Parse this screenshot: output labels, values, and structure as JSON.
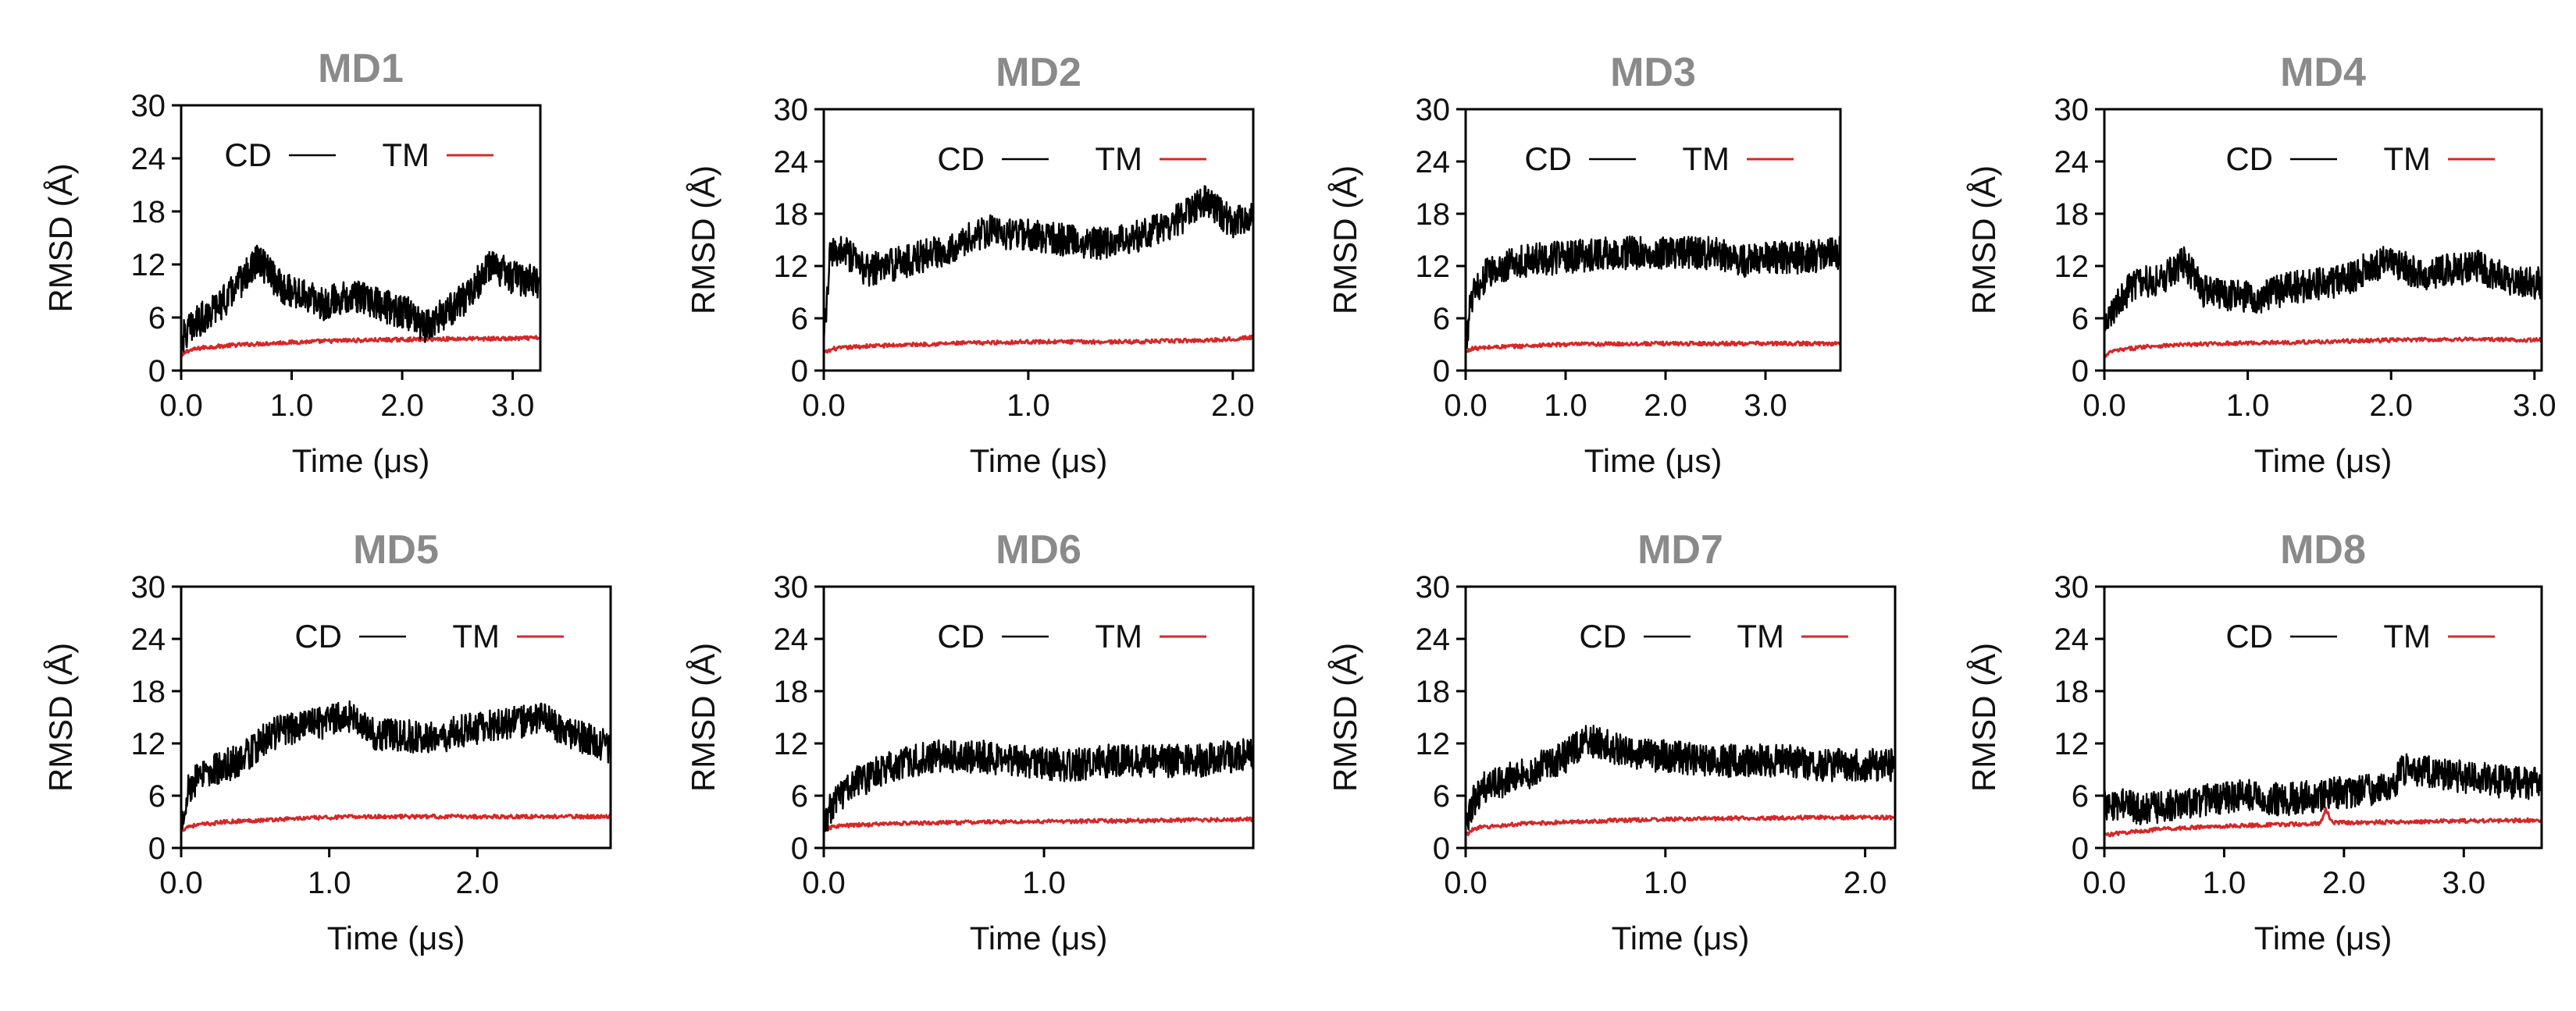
{
  "colors": {
    "cd": "#000000",
    "tm": "#d62728",
    "title": "#8a8a8a"
  },
  "chart_data": [
    {
      "type": "line",
      "title": "MD1",
      "xlabel": "Time (μs)",
      "ylabel": "RMSD (Å)",
      "xlim": [
        0,
        3.25
      ],
      "ylim": [
        0,
        30
      ],
      "xticks": [
        0,
        1,
        2,
        3
      ],
      "xtick_labels": [
        "0.0",
        "1.0",
        "2.0",
        "3.0"
      ],
      "yticks": [
        0,
        6,
        12,
        18,
        24,
        30
      ],
      "ytick_labels": [
        "0",
        "6",
        "12",
        "18",
        "24",
        "30"
      ],
      "legend": [
        "CD",
        "TM"
      ],
      "legend_position": "top-right",
      "series": [
        {
          "name": "CD",
          "color": "#000000",
          "x": [
            0,
            0.1,
            0.2,
            0.4,
            0.6,
            0.7,
            0.9,
            1.1,
            1.3,
            1.5,
            1.7,
            1.9,
            2.05,
            2.2,
            2.4,
            2.6,
            2.8,
            3.0,
            3.25
          ],
          "y": [
            3.5,
            5,
            6,
            8,
            11,
            12.5,
            9.5,
            8.5,
            7.5,
            8.5,
            8,
            7,
            6.5,
            5,
            6.5,
            8.5,
            12,
            10.5,
            10
          ]
        },
        {
          "name": "TM",
          "color": "#d62728",
          "x": [
            0,
            0.05,
            0.2,
            0.5,
            1.0,
            1.5,
            2.0,
            2.5,
            3.0,
            3.25
          ],
          "y": [
            1.5,
            2.2,
            2.6,
            2.9,
            3.2,
            3.4,
            3.5,
            3.6,
            3.6,
            3.7
          ]
        }
      ]
    },
    {
      "type": "line",
      "title": "MD2",
      "xlabel": "Time (μs)",
      "ylabel": "RMSD (Å)",
      "xlim": [
        0,
        2.1
      ],
      "ylim": [
        0,
        30
      ],
      "xticks": [
        0,
        1,
        2
      ],
      "xtick_labels": [
        "0.0",
        "1.0",
        "2.0"
      ],
      "yticks": [
        0,
        6,
        12,
        18,
        24,
        30
      ],
      "ytick_labels": [
        "0",
        "6",
        "12",
        "18",
        "24",
        "30"
      ],
      "legend": [
        "CD",
        "TM"
      ],
      "legend_position": "top-right",
      "series": [
        {
          "name": "CD",
          "color": "#000000",
          "x": [
            0,
            0.03,
            0.08,
            0.2,
            0.4,
            0.6,
            0.8,
            1.0,
            1.2,
            1.4,
            1.6,
            1.75,
            1.85,
            2.0,
            2.1
          ],
          "y": [
            3,
            13,
            14,
            11.5,
            12.5,
            14,
            16,
            15.5,
            15,
            14.5,
            16,
            17.5,
            19.5,
            17,
            18
          ]
        },
        {
          "name": "TM",
          "color": "#d62728",
          "x": [
            0,
            0.05,
            0.2,
            0.6,
            1.0,
            1.5,
            1.9,
            2.1
          ],
          "y": [
            2,
            2.5,
            2.8,
            3.1,
            3.3,
            3.3,
            3.5,
            3.8
          ]
        }
      ]
    },
    {
      "type": "line",
      "title": "MD3",
      "xlabel": "Time (μs)",
      "ylabel": "RMSD (Å)",
      "xlim": [
        0,
        3.75
      ],
      "ylim": [
        0,
        30
      ],
      "xticks": [
        0,
        1,
        2,
        3
      ],
      "xtick_labels": [
        "0.0",
        "1.0",
        "2.0",
        "3.0"
      ],
      "yticks": [
        0,
        6,
        12,
        18,
        24,
        30
      ],
      "ytick_labels": [
        "0",
        "6",
        "12",
        "18",
        "24",
        "30"
      ],
      "legend": [
        "CD",
        "TM"
      ],
      "legend_position": "top-right",
      "series": [
        {
          "name": "CD",
          "color": "#000000",
          "x": [
            0,
            0.05,
            0.2,
            0.5,
            1.0,
            1.5,
            2.0,
            2.5,
            2.8,
            3.1,
            3.4,
            3.75
          ],
          "y": [
            2,
            8,
            11,
            12.5,
            13,
            13.5,
            13.5,
            13.5,
            12.5,
            13,
            13,
            13.5
          ]
        },
        {
          "name": "TM",
          "color": "#d62728",
          "x": [
            0,
            0.05,
            0.3,
            1.0,
            2.0,
            3.0,
            3.75
          ],
          "y": [
            2,
            2.5,
            2.7,
            3,
            3.1,
            3.1,
            3.1
          ]
        }
      ]
    },
    {
      "type": "line",
      "title": "MD4",
      "xlabel": "Time (μs)",
      "ylabel": "RMSD (Å)",
      "xlim": [
        0,
        3.05
      ],
      "ylim": [
        0,
        30
      ],
      "xticks": [
        0,
        1,
        2,
        3
      ],
      "xtick_labels": [
        "0.0",
        "1.0",
        "2.0",
        "3.0"
      ],
      "yticks": [
        0,
        6,
        12,
        18,
        24,
        30
      ],
      "ytick_labels": [
        "0",
        "6",
        "12",
        "18",
        "24",
        "30"
      ],
      "legend": [
        "CD",
        "TM"
      ],
      "legend_position": "top-right",
      "series": [
        {
          "name": "CD",
          "color": "#000000",
          "x": [
            0,
            0.05,
            0.2,
            0.4,
            0.55,
            0.7,
            0.9,
            1.1,
            1.3,
            1.5,
            1.7,
            1.85,
            2.0,
            2.2,
            2.4,
            2.6,
            2.8,
            3.05
          ],
          "y": [
            4,
            7,
            10,
            10.5,
            12.5,
            9,
            8.5,
            8.5,
            9.5,
            10,
            10.5,
            12,
            12.5,
            11,
            11.5,
            12,
            10.5,
            10
          ]
        },
        {
          "name": "TM",
          "color": "#d62728",
          "x": [
            0,
            0.05,
            0.3,
            0.8,
            1.5,
            2.0,
            2.5,
            3.05
          ],
          "y": [
            1.5,
            2.2,
            2.8,
            3.1,
            3.3,
            3.5,
            3.6,
            3.5
          ]
        }
      ]
    },
    {
      "type": "line",
      "title": "MD5",
      "xlabel": "Time (μs)",
      "ylabel": "RMSD (Å)",
      "xlim": [
        0,
        2.9
      ],
      "ylim": [
        0,
        30
      ],
      "xticks": [
        0,
        1,
        2
      ],
      "xtick_labels": [
        "0.0",
        "1.0",
        "2.0"
      ],
      "yticks": [
        0,
        6,
        12,
        18,
        24,
        30
      ],
      "ytick_labels": [
        "0",
        "6",
        "12",
        "18",
        "24",
        "30"
      ],
      "legend": [
        "CD",
        "TM"
      ],
      "legend_position": "top-right",
      "series": [
        {
          "name": "CD",
          "color": "#000000",
          "x": [
            0,
            0.05,
            0.2,
            0.4,
            0.6,
            0.8,
            1.0,
            1.1,
            1.3,
            1.5,
            1.7,
            1.9,
            2.1,
            2.3,
            2.45,
            2.6,
            2.75,
            2.9
          ],
          "y": [
            3,
            7,
            9,
            10,
            13,
            14,
            14.5,
            15.5,
            13,
            13,
            12.5,
            13.5,
            14,
            14.5,
            15,
            13,
            12.5,
            11.5
          ]
        },
        {
          "name": "TM",
          "color": "#d62728",
          "x": [
            0,
            0.05,
            0.3,
            0.8,
            1.2,
            1.8,
            2.4,
            2.9
          ],
          "y": [
            2,
            2.5,
            3,
            3.4,
            3.6,
            3.6,
            3.6,
            3.6
          ]
        }
      ]
    },
    {
      "type": "line",
      "title": "MD6",
      "xlabel": "Time (μs)",
      "ylabel": "RMSD (Å)",
      "xlim": [
        0,
        1.95
      ],
      "ylim": [
        0,
        30
      ],
      "xticks": [
        0,
        1
      ],
      "xtick_labels": [
        "0.0",
        "1.0"
      ],
      "yticks": [
        0,
        6,
        12,
        18,
        24,
        30
      ],
      "ytick_labels": [
        "0",
        "6",
        "12",
        "18",
        "24",
        "30"
      ],
      "legend": [
        "CD",
        "TM"
      ],
      "legend_position": "top-right",
      "series": [
        {
          "name": "CD",
          "color": "#000000",
          "x": [
            0,
            0.05,
            0.15,
            0.3,
            0.5,
            0.7,
            0.9,
            1.1,
            1.3,
            1.5,
            1.7,
            1.85,
            1.95
          ],
          "y": [
            3,
            5.5,
            7.5,
            9.5,
            10.5,
            10.5,
            10,
            9.5,
            10,
            10,
            10,
            10.5,
            11
          ]
        },
        {
          "name": "TM",
          "color": "#d62728",
          "x": [
            0,
            0.05,
            0.3,
            0.8,
            1.3,
            1.95
          ],
          "y": [
            2,
            2.5,
            2.8,
            3,
            3.1,
            3.3
          ]
        }
      ]
    },
    {
      "type": "line",
      "title": "MD7",
      "xlabel": "Time (μs)",
      "ylabel": "RMSD (Å)",
      "xlim": [
        0,
        2.15
      ],
      "ylim": [
        0,
        30
      ],
      "xticks": [
        0,
        1,
        2
      ],
      "xtick_labels": [
        "0.0",
        "1.0",
        "2.0"
      ],
      "yticks": [
        0,
        6,
        12,
        18,
        24,
        30
      ],
      "ytick_labels": [
        "0",
        "6",
        "12",
        "18",
        "24",
        "30"
      ],
      "legend": [
        "CD",
        "TM"
      ],
      "legend_position": "top-right",
      "series": [
        {
          "name": "CD",
          "color": "#000000",
          "x": [
            0,
            0.03,
            0.1,
            0.3,
            0.5,
            0.6,
            0.8,
            1.0,
            1.2,
            1.4,
            1.6,
            1.8,
            2.0,
            2.15
          ],
          "y": [
            1.5,
            5,
            7,
            8.5,
            10.5,
            12.5,
            11,
            10.5,
            10,
            10,
            10,
            9.5,
            9.5,
            9.5
          ]
        },
        {
          "name": "TM",
          "color": "#d62728",
          "x": [
            0,
            0.05,
            0.3,
            0.8,
            1.3,
            1.8,
            2.15
          ],
          "y": [
            1.5,
            2.3,
            2.8,
            3.2,
            3.4,
            3.5,
            3.5
          ]
        }
      ]
    },
    {
      "type": "line",
      "title": "MD8",
      "xlabel": "Time (μs)",
      "ylabel": "RMSD (Å)",
      "xlim": [
        0,
        3.65
      ],
      "ylim": [
        0,
        30
      ],
      "xticks": [
        0,
        1,
        2,
        3
      ],
      "xtick_labels": [
        "0.0",
        "1.0",
        "2.0",
        "3.0"
      ],
      "yticks": [
        0,
        6,
        12,
        18,
        24,
        30
      ],
      "ytick_labels": [
        "0",
        "6",
        "12",
        "18",
        "24",
        "30"
      ],
      "legend": [
        "CD",
        "TM"
      ],
      "legend_position": "top-right",
      "series": [
        {
          "name": "CD",
          "color": "#000000",
          "x": [
            0,
            0.1,
            0.3,
            0.6,
            0.9,
            1.2,
            1.5,
            1.8,
            2.1,
            2.4,
            2.5,
            2.8,
            3.1,
            3.4,
            3.65
          ],
          "y": [
            5,
            5,
            4.5,
            5,
            5.5,
            6,
            5.5,
            6,
            6.5,
            7,
            9,
            8.5,
            8,
            7.5,
            7.5
          ]
        },
        {
          "name": "TM",
          "color": "#d62728",
          "x": [
            0,
            0.2,
            0.5,
            1.0,
            1.5,
            1.8,
            1.85,
            1.9,
            2.0,
            2.5,
            3.0,
            3.65
          ],
          "y": [
            1.5,
            1.8,
            2.2,
            2.5,
            2.7,
            2.8,
            4.5,
            2.9,
            2.9,
            3.0,
            3.1,
            3.2
          ]
        }
      ]
    }
  ]
}
